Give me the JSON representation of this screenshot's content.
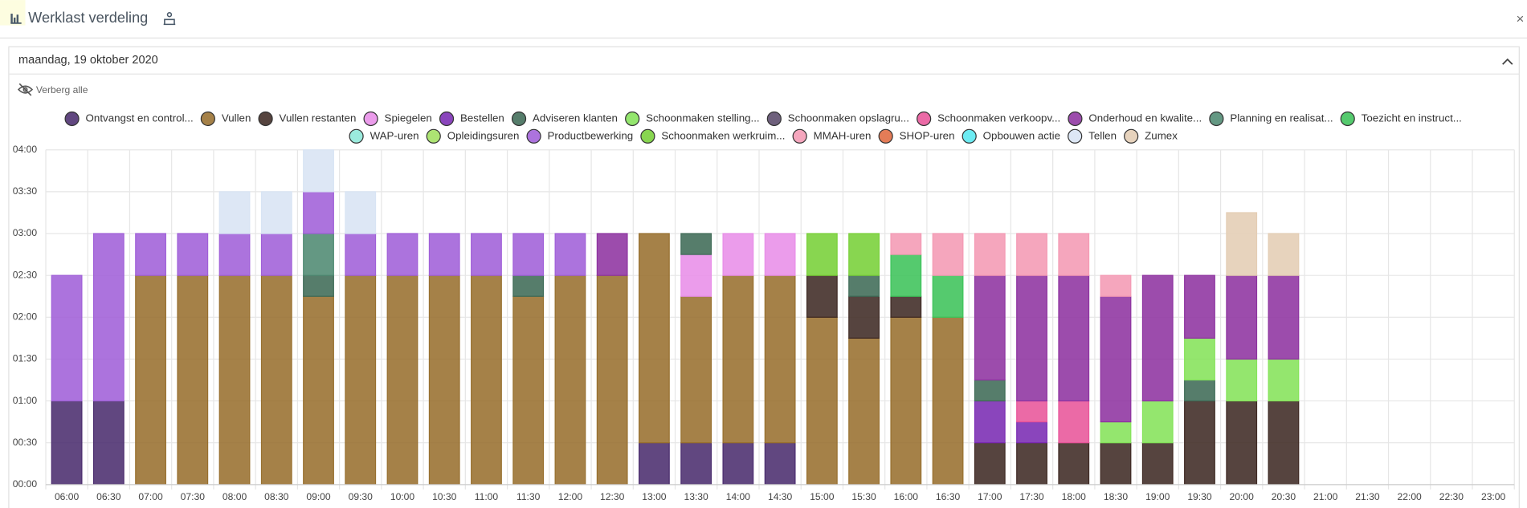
{
  "header": {
    "title": "Werklast verdeling"
  },
  "panel": {
    "date": "maandag, 19 oktober 2020",
    "hide_all": "Verberg alle"
  },
  "chart_data": {
    "type": "stacked-bar",
    "categories": [
      "06:00",
      "06:30",
      "07:00",
      "07:30",
      "08:00",
      "08:30",
      "09:00",
      "09:30",
      "10:00",
      "10:30",
      "11:00",
      "11:30",
      "12:00",
      "12:30",
      "13:00",
      "13:30",
      "14:00",
      "14:30",
      "15:00",
      "15:30",
      "16:00",
      "16:30",
      "17:00",
      "17:30",
      "18:00",
      "18:30",
      "19:00",
      "19:30",
      "20:00",
      "20:30",
      "21:00",
      "21:30",
      "22:00",
      "22:30",
      "23:00"
    ],
    "ylim": [
      0,
      4
    ],
    "yticks": [
      {
        "value": 0,
        "label": "00:00"
      },
      {
        "value": 0.5,
        "label": "00:30"
      },
      {
        "value": 1,
        "label": "01:00"
      },
      {
        "value": 1.5,
        "label": "01:30"
      },
      {
        "value": 2,
        "label": "02:00"
      },
      {
        "value": 2.5,
        "label": "02:30"
      },
      {
        "value": 3,
        "label": "03:00"
      },
      {
        "value": 3.5,
        "label": "03:30"
      },
      {
        "value": 4,
        "label": "04:00"
      }
    ],
    "grid": true,
    "series": [
      {
        "name": "Ontvangst en control...",
        "color": "#4b2d6e",
        "values": [
          1,
          1,
          0,
          0,
          0,
          0,
          0,
          0,
          0,
          0,
          0,
          0,
          0,
          0,
          0.5,
          0.5,
          0.5,
          0.5,
          0,
          0,
          0,
          0,
          0,
          0,
          0,
          0,
          0,
          0,
          0,
          0,
          0,
          0,
          0,
          0,
          0
        ]
      },
      {
        "name": "Vullen",
        "color": "#98702f",
        "values": [
          0,
          0,
          2.5,
          2.5,
          2.5,
          2.5,
          2.25,
          2.5,
          2.5,
          2.5,
          2.5,
          2.25,
          2.5,
          2.5,
          2.5,
          1.75,
          2,
          2,
          2,
          1.75,
          2,
          2,
          0,
          0,
          0,
          0,
          0,
          0,
          0,
          0,
          0,
          0,
          0,
          0,
          0
        ]
      },
      {
        "name": "Vullen restanten",
        "color": "#3f2a24",
        "values": [
          0,
          0,
          0,
          0,
          0,
          0,
          0,
          0,
          0,
          0,
          0,
          0,
          0,
          0,
          0,
          0,
          0,
          0,
          0.5,
          0.5,
          0.25,
          0,
          0.5,
          0.5,
          0.5,
          0.5,
          0.5,
          1,
          1,
          1,
          0,
          0,
          0,
          0,
          0
        ]
      },
      {
        "name": "Spiegelen",
        "color": "#e88ee8",
        "values": [
          0,
          0,
          0,
          0,
          0,
          0,
          0,
          0,
          0,
          0,
          0,
          0,
          0,
          0,
          0,
          0.5,
          0.5,
          0.5,
          0,
          0,
          0,
          0,
          0,
          0,
          0,
          0,
          0,
          0,
          0,
          0,
          0,
          0,
          0,
          0,
          0
        ]
      },
      {
        "name": "Bestellen",
        "color": "#7a2bb3",
        "values": [
          0,
          0,
          0,
          0,
          0,
          0,
          0,
          0,
          0,
          0,
          0,
          0,
          0,
          0,
          0,
          0,
          0,
          0,
          0,
          0,
          0,
          0,
          0.5,
          0.25,
          0,
          0,
          0,
          0,
          0,
          0,
          0,
          0,
          0,
          0,
          0
        ]
      },
      {
        "name": "Adviseren klanten",
        "color": "#3f6b57",
        "values": [
          0,
          0,
          0,
          0,
          0,
          0,
          0.25,
          0,
          0,
          0,
          0,
          0.25,
          0,
          0,
          0,
          0.25,
          0,
          0,
          0,
          0.25,
          0,
          0,
          0.25,
          0,
          0,
          0,
          0,
          0.25,
          0,
          0,
          0,
          0,
          0,
          0,
          0
        ]
      },
      {
        "name": "Schoonmaken stelling...",
        "color": "#85e35a",
        "values": [
          0,
          0,
          0,
          0,
          0,
          0,
          0,
          0,
          0,
          0,
          0,
          0,
          0,
          0,
          0,
          0,
          0,
          0,
          0,
          0,
          0,
          0,
          0,
          0,
          0,
          0.25,
          0.5,
          0.5,
          0.5,
          0.5,
          0,
          0,
          0,
          0,
          0
        ]
      },
      {
        "name": "Schoonmaken opslagru...",
        "color": "#5a4a6a",
        "values": [
          0,
          0,
          0,
          0,
          0,
          0,
          0,
          0,
          0,
          0,
          0,
          0,
          0,
          0,
          0,
          0,
          0,
          0,
          0,
          0,
          0,
          0,
          0,
          0,
          0,
          0,
          0,
          0,
          0,
          0,
          0,
          0,
          0,
          0,
          0
        ]
      },
      {
        "name": "Schoonmaken verkoopv...",
        "color": "#e8559a",
        "values": [
          0,
          0,
          0,
          0,
          0,
          0,
          0,
          0,
          0,
          0,
          0,
          0,
          0,
          0,
          0,
          0,
          0,
          0,
          0,
          0,
          0,
          0,
          0,
          0.25,
          0.5,
          0,
          0,
          0,
          0,
          0,
          0,
          0,
          0,
          0,
          0
        ]
      },
      {
        "name": "Onderhoud en kwalite...",
        "color": "#8e33a0",
        "values": [
          0,
          0,
          0,
          0,
          0,
          0,
          0,
          0,
          0,
          0,
          0,
          0,
          0,
          0.5,
          0,
          0,
          0,
          0,
          0,
          0,
          0,
          0,
          1.25,
          1.5,
          1.5,
          1.5,
          1.5,
          0.75,
          1,
          1,
          0,
          0,
          0,
          0,
          0
        ]
      },
      {
        "name": "Planning en realisat...",
        "color": "#4f8a72",
        "values": [
          0,
          0,
          0,
          0,
          0,
          0,
          0.5,
          0,
          0,
          0,
          0,
          0,
          0,
          0,
          0,
          0,
          0,
          0,
          0,
          0,
          0,
          0,
          0,
          0,
          0,
          0,
          0,
          0,
          0,
          0,
          0,
          0,
          0,
          0,
          0
        ]
      },
      {
        "name": "Toezicht en instruct...",
        "color": "#3dc35a",
        "values": [
          0,
          0,
          0,
          0,
          0,
          0,
          0,
          0,
          0,
          0,
          0,
          0,
          0,
          0,
          0,
          0,
          0,
          0,
          0,
          0,
          0.5,
          0.5,
          0,
          0,
          0,
          0,
          0,
          0,
          0,
          0,
          0,
          0,
          0,
          0,
          0
        ]
      },
      {
        "name": "WAP-uren",
        "color": "#8de8d8",
        "values": [
          0,
          0,
          0,
          0,
          0,
          0,
          0,
          0,
          0,
          0,
          0,
          0,
          0,
          0,
          0,
          0,
          0,
          0,
          0,
          0,
          0,
          0,
          0,
          0,
          0,
          0,
          0,
          0,
          0,
          0,
          0,
          0,
          0,
          0,
          0
        ]
      },
      {
        "name": "Opleidingsuren",
        "color": "#a2e060",
        "values": [
          0,
          0,
          0,
          0,
          0,
          0,
          0,
          0,
          0,
          0,
          0,
          0,
          0,
          0,
          0,
          0,
          0,
          0,
          0,
          0,
          0,
          0,
          0,
          0,
          0,
          0,
          0,
          0,
          0,
          0,
          0,
          0,
          0,
          0,
          0
        ]
      },
      {
        "name": "Productbewerking",
        "color": "#a060d8",
        "values": [
          1.5,
          2,
          0.5,
          0.5,
          0.5,
          0.5,
          0.5,
          0.5,
          0.5,
          0.5,
          0.5,
          0.5,
          0.5,
          0,
          0,
          0,
          0,
          0,
          0,
          0,
          0,
          0,
          0,
          0,
          0,
          0,
          0,
          0,
          0,
          0,
          0,
          0,
          0,
          0,
          0
        ]
      },
      {
        "name": "Schoonmaken werkruim...",
        "color": "#78d038",
        "values": [
          0,
          0,
          0,
          0,
          0,
          0,
          0,
          0,
          0,
          0,
          0,
          0,
          0,
          0,
          0,
          0,
          0,
          0,
          0.5,
          0.5,
          0,
          0,
          0,
          0,
          0,
          0,
          0,
          0,
          0,
          0,
          0,
          0,
          0,
          0,
          0
        ]
      },
      {
        "name": "MMAH-uren",
        "color": "#f49ab4",
        "values": [
          0,
          0,
          0,
          0,
          0,
          0,
          0,
          0,
          0,
          0,
          0,
          0,
          0,
          0,
          0,
          0,
          0,
          0,
          0,
          0,
          0.25,
          0.5,
          0.5,
          0.5,
          0.5,
          0.25,
          0,
          0,
          0,
          0,
          0,
          0,
          0,
          0,
          0
        ]
      },
      {
        "name": "SHOP-uren",
        "color": "#e06a40",
        "values": [
          0,
          0,
          0,
          0,
          0,
          0,
          0,
          0,
          0,
          0,
          0,
          0,
          0,
          0,
          0,
          0,
          0,
          0,
          0,
          0,
          0,
          0,
          0,
          0,
          0,
          0,
          0,
          0,
          0,
          0,
          0,
          0,
          0,
          0,
          0
        ]
      },
      {
        "name": "Opbouwen actie",
        "color": "#58e8f0",
        "values": [
          0,
          0,
          0,
          0,
          0,
          0,
          0,
          0,
          0,
          0,
          0,
          0,
          0,
          0,
          0,
          0,
          0,
          0,
          0,
          0,
          0,
          0,
          0,
          0,
          0,
          0,
          0,
          0,
          0,
          0,
          0,
          0,
          0,
          0,
          0
        ]
      },
      {
        "name": "Tellen",
        "color": "#d8e4f4",
        "values": [
          0,
          0,
          0,
          0,
          0.5,
          0.5,
          0.5,
          0.5,
          0,
          0,
          0,
          0,
          0,
          0,
          0,
          0,
          0,
          0,
          0,
          0,
          0,
          0,
          0,
          0,
          0,
          0,
          0,
          0,
          0,
          0,
          0,
          0,
          0,
          0,
          0
        ]
      },
      {
        "name": "Zumex",
        "color": "#e4cdb4",
        "values": [
          0,
          0,
          0,
          0,
          0,
          0,
          0,
          0,
          0,
          0,
          0,
          0,
          0,
          0,
          0,
          0,
          0,
          0,
          0,
          0,
          0,
          0,
          0,
          0,
          0,
          0,
          0,
          0,
          0.75,
          0.5,
          0,
          0,
          0,
          0,
          0
        ]
      }
    ]
  }
}
